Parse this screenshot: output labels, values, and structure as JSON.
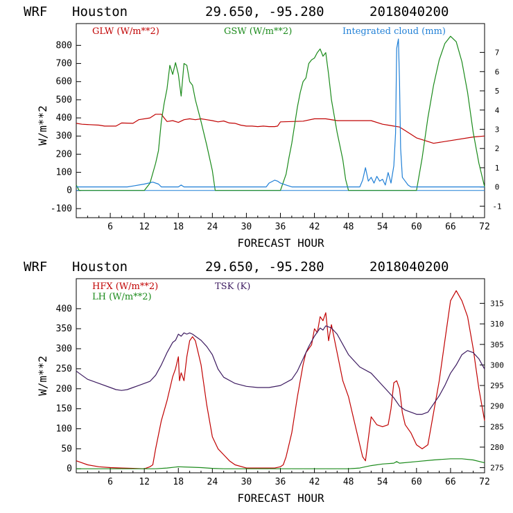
{
  "header": {
    "model": "WRF",
    "site": "Houston",
    "coords": "29.650, -95.280",
    "init": "2018040200"
  },
  "colors": {
    "red": "#c00000",
    "green": "#1a8a1a",
    "blue": "#1f7fd6",
    "purple": "#3c1a60"
  },
  "chart_data": [
    {
      "type": "line",
      "title": "WRF Houston 29.650, -95.280 2018040200",
      "xlabel": "FORECAST HOUR",
      "ylabel": "W/m**2",
      "xlim": [
        0,
        72
      ],
      "ylim": [
        -150,
        920
      ],
      "y2lim": [
        -1.6,
        8.5
      ],
      "xticks": [
        "6",
        "12",
        "18",
        "24",
        "30",
        "36",
        "42",
        "48",
        "54",
        "60",
        "66",
        "72"
      ],
      "yticks": [
        "-100",
        "0",
        "100",
        "200",
        "300",
        "400",
        "500",
        "600",
        "700",
        "800"
      ],
      "y2ticks": [
        "-1",
        "0",
        "1",
        "2",
        "3",
        "4",
        "5",
        "6",
        "7"
      ],
      "legend": [
        "GLW (W/m**2)",
        "GSW (W/m**2)",
        "Integrated cloud (mm)"
      ],
      "series": [
        {
          "name": "GLW (W/m**2)",
          "axis": "left",
          "color": "red",
          "x": [
            0,
            1,
            4,
            5,
            7,
            8,
            10,
            11,
            13,
            14,
            15,
            15.5,
            16,
            17,
            18,
            19,
            20,
            21,
            22,
            23,
            24,
            25,
            26,
            27,
            28,
            29,
            30,
            31,
            32,
            33,
            34,
            35,
            35.5,
            36,
            38,
            40,
            42,
            44,
            46,
            48,
            50,
            52,
            54,
            55,
            56,
            57,
            58,
            59,
            60,
            62,
            63,
            66,
            70,
            72
          ],
          "y": [
            370,
            365,
            360,
            355,
            355,
            372,
            370,
            390,
            400,
            420,
            420,
            400,
            380,
            385,
            375,
            390,
            395,
            390,
            395,
            390,
            385,
            378,
            383,
            372,
            370,
            360,
            355,
            355,
            352,
            355,
            352,
            352,
            355,
            378,
            380,
            382,
            395,
            395,
            385,
            385,
            385,
            385,
            365,
            360,
            355,
            350,
            330,
            310,
            290,
            270,
            260,
            275,
            295,
            300
          ]
        },
        {
          "name": "GSW (W/m**2)",
          "axis": "left",
          "color": "green",
          "x": [
            0,
            0.5,
            12,
            13,
            14,
            14.5,
            15,
            15.5,
            16,
            16.5,
            17,
            17.5,
            18,
            18.5,
            19,
            19.5,
            20,
            20.5,
            21,
            22,
            23,
            24,
            24.5,
            36,
            37,
            37.5,
            38,
            39,
            39.5,
            40,
            40.5,
            41,
            41.5,
            42,
            42.5,
            43,
            43.5,
            44,
            44.5,
            45,
            46,
            47,
            47.5,
            48,
            48.5,
            60,
            61,
            62,
            63,
            64,
            65,
            66,
            67,
            68,
            69,
            70,
            71,
            72
          ],
          "y": [
            30,
            0,
            0,
            40,
            150,
            220,
            380,
            480,
            560,
            690,
            640,
            705,
            640,
            520,
            700,
            690,
            600,
            580,
            500,
            380,
            250,
            110,
            0,
            0,
            90,
            180,
            260,
            460,
            540,
            600,
            620,
            700,
            720,
            730,
            760,
            780,
            740,
            760,
            640,
            500,
            320,
            170,
            60,
            0,
            0,
            0,
            180,
            400,
            580,
            720,
            810,
            850,
            820,
            710,
            540,
            320,
            150,
            20
          ]
        },
        {
          "name": "Integrated cloud (mm)",
          "axis": "right",
          "color": "blue",
          "x": [
            0,
            9,
            10,
            12,
            13.5,
            14.5,
            15,
            15.5,
            16,
            17,
            18,
            18.5,
            19,
            20,
            21,
            22,
            23,
            24,
            25,
            26,
            27,
            28,
            29,
            30,
            31,
            32,
            33,
            33.5,
            34,
            35,
            35.5,
            36,
            37,
            38,
            38.5,
            39,
            40,
            42,
            44,
            46,
            48,
            50,
            50.5,
            51,
            51.5,
            52,
            52.5,
            53,
            53.5,
            54,
            54.5,
            55,
            55.5,
            56,
            56.3,
            56.5,
            56.8,
            57,
            57.2,
            57.5,
            58,
            58.5,
            59,
            59.5,
            60,
            62,
            64,
            66,
            68,
            70,
            72
          ],
          "y": [
            0,
            0,
            0.05,
            0.15,
            0.25,
            0.15,
            0,
            0,
            0,
            0,
            0,
            0.1,
            0,
            0,
            0,
            0,
            0,
            0,
            0,
            0,
            0,
            0,
            0,
            0,
            0,
            0,
            0,
            0,
            0.2,
            0.35,
            0.3,
            0.2,
            0.1,
            0,
            0,
            0,
            0,
            0,
            0,
            0,
            0,
            0,
            0.35,
            1,
            0.3,
            0.5,
            0.2,
            0.55,
            0.3,
            0.4,
            0.1,
            0.75,
            0.2,
            1.1,
            2.8,
            7.2,
            7.7,
            5.5,
            2,
            0.5,
            0.3,
            0.1,
            0,
            0,
            0,
            0,
            0,
            0,
            0,
            0,
            0
          ]
        }
      ]
    },
    {
      "type": "line",
      "title": "WRF Houston 29.650, -95.280 2018040200",
      "xlabel": "FORECAST HOUR",
      "ylabel": "W/m**2",
      "xlim": [
        0,
        72
      ],
      "ylim": [
        -10,
        475
      ],
      "y2lim": [
        273.75,
        321
      ],
      "xticks": [
        "6",
        "12",
        "18",
        "24",
        "30",
        "36",
        "42",
        "48",
        "54",
        "60",
        "66",
        "72"
      ],
      "yticks": [
        "0",
        "50",
        "100",
        "150",
        "200",
        "250",
        "300",
        "350",
        "400"
      ],
      "y2ticks": [
        "275",
        "280",
        "285",
        "290",
        "295",
        "300",
        "305",
        "310",
        "315"
      ],
      "legend": [
        "HFX (W/m**2)",
        "LH (W/m**2)",
        "TSK (K)"
      ],
      "series": [
        {
          "name": "HFX (W/m**2)",
          "axis": "left",
          "color": "red",
          "x": [
            0,
            1,
            2,
            4,
            6,
            8,
            10,
            12,
            13,
            13.5,
            14,
            15,
            16,
            17,
            17.5,
            18,
            18.2,
            18.5,
            19,
            19.5,
            20,
            20.5,
            21,
            22,
            23,
            24,
            25,
            26,
            27,
            28,
            30,
            35,
            36,
            36.5,
            37,
            38,
            39,
            40,
            40.5,
            41,
            41.5,
            42,
            42.5,
            43,
            43.5,
            44,
            44.5,
            45,
            46,
            47,
            48,
            49,
            50,
            50.5,
            51,
            52,
            53,
            54,
            55,
            55.5,
            56,
            56.5,
            57,
            57.5,
            58,
            59,
            60,
            61,
            62,
            63,
            64,
            65,
            66,
            67,
            68,
            69,
            70,
            71,
            72
          ],
          "y": [
            20,
            15,
            10,
            5,
            3,
            2,
            1,
            0,
            5,
            10,
            50,
            120,
            170,
            230,
            250,
            280,
            220,
            240,
            220,
            280,
            320,
            330,
            320,
            260,
            160,
            80,
            50,
            35,
            20,
            10,
            2,
            2,
            5,
            10,
            30,
            90,
            180,
            260,
            290,
            300,
            310,
            350,
            340,
            380,
            370,
            390,
            320,
            360,
            290,
            220,
            180,
            120,
            60,
            30,
            20,
            130,
            110,
            105,
            110,
            150,
            215,
            220,
            200,
            140,
            110,
            90,
            60,
            50,
            60,
            140,
            220,
            320,
            420,
            445,
            420,
            380,
            300,
            200,
            120
          ]
        },
        {
          "name": "LH (W/m**2)",
          "axis": "left",
          "color": "green",
          "x": [
            0,
            10,
            12,
            14,
            16,
            18,
            20,
            22,
            24,
            26,
            28,
            30,
            36,
            40,
            44,
            48,
            50,
            52,
            54,
            56,
            56.5,
            57,
            60,
            63,
            66,
            68,
            70,
            72
          ],
          "y": [
            0,
            0,
            0,
            0,
            2,
            5,
            4,
            3,
            1,
            0,
            0,
            0,
            0,
            0,
            0,
            0,
            2,
            8,
            12,
            14,
            18,
            14,
            18,
            22,
            25,
            25,
            22,
            15
          ]
        },
        {
          "name": "TSK (K)",
          "axis": "right",
          "color": "purple",
          "x": [
            0,
            1,
            2,
            4,
            6,
            7,
            8,
            9,
            10,
            11,
            12,
            13,
            14,
            15,
            16,
            17,
            17.5,
            18,
            18.5,
            19,
            19.5,
            20,
            20.5,
            21,
            22,
            23,
            24,
            25,
            26,
            28,
            30,
            32,
            34,
            36,
            38,
            39,
            40,
            41,
            42,
            42.5,
            43,
            43.5,
            44,
            45,
            46,
            47,
            48,
            49,
            50,
            52,
            54,
            56,
            57,
            58,
            59,
            60,
            61,
            62,
            63,
            64,
            65,
            66,
            67,
            68,
            69,
            70,
            71,
            72
          ],
          "y": [
            298.5,
            297.5,
            296.5,
            295.5,
            294.5,
            294,
            293.8,
            294,
            294.5,
            295,
            295.5,
            296,
            297.5,
            300,
            303,
            305.5,
            306,
            307.5,
            307,
            307.8,
            307.5,
            307.8,
            307.5,
            307,
            306,
            304.5,
            302.5,
            299,
            297,
            295.5,
            294.8,
            294.5,
            294.5,
            295,
            296.5,
            298.5,
            301.5,
            304.5,
            307,
            308,
            309,
            308.5,
            309.5,
            309,
            307.5,
            305,
            302.5,
            301,
            299.5,
            298,
            295,
            292,
            290,
            289,
            288.5,
            288,
            288,
            288.5,
            290.5,
            292.5,
            295,
            298,
            300,
            302.5,
            303.5,
            303,
            301.5,
            299
          ]
        }
      ]
    }
  ]
}
